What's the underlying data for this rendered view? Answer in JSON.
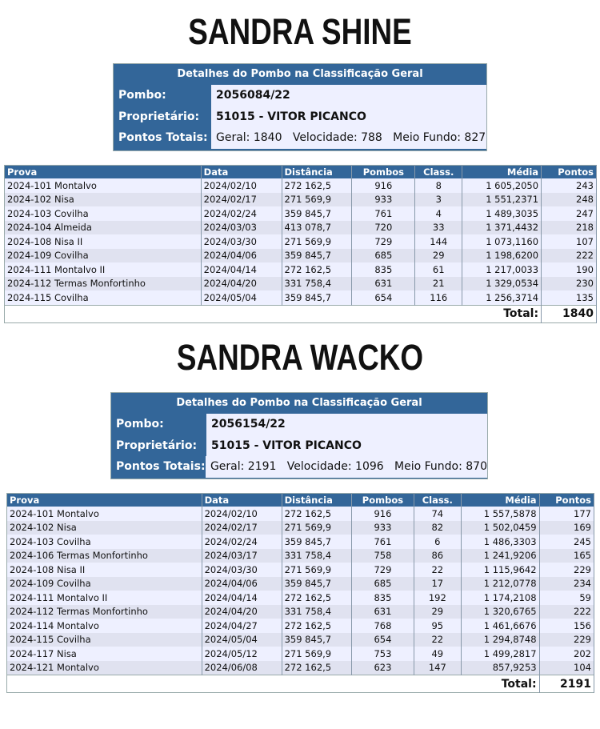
{
  "headers": {
    "prova": "Prova",
    "data": "Data",
    "distancia": "Distância",
    "pombos": "Pombos",
    "classif": "Class.",
    "media": "Média",
    "pontos": "Pontos"
  },
  "labels": {
    "box_title": "Detalhes do Pombo na Classificação Geral",
    "pombo": "Pombo:",
    "proprietario": "Proprietário:",
    "pontos_totais": "Pontos Totais:",
    "total": "Total:"
  },
  "colors": {
    "header_blue": "#336699",
    "row_light": "#eef0ff",
    "row_dark": "#e0e2f0"
  },
  "sections": [
    {
      "name": "SANDRA SHINE",
      "pombo": "2056084/22",
      "proprietario": "51015 - VITOR PICANCO",
      "pontos_totais": "Geral: 1840   Velocidade: 788   Meio Fundo: 827",
      "total": "1840",
      "rows": [
        [
          "2024-101 Montalvo",
          "2024/02/10",
          "272 162,5",
          "916",
          "8",
          "1 605,2050",
          "243"
        ],
        [
          "2024-102 Nisa",
          "2024/02/17",
          "271 569,9",
          "933",
          "3",
          "1 551,2371",
          "248"
        ],
        [
          "2024-103 Covilha",
          "2024/02/24",
          "359 845,7",
          "761",
          "4",
          "1 489,3035",
          "247"
        ],
        [
          "2024-104 Almeida",
          "2024/03/03",
          "413 078,7",
          "720",
          "33",
          "1 371,4432",
          "218"
        ],
        [
          "2024-108 Nisa II",
          "2024/03/30",
          "271 569,9",
          "729",
          "144",
          "1 073,1160",
          "107"
        ],
        [
          "2024-109 Covilha",
          "2024/04/06",
          "359 845,7",
          "685",
          "29",
          "1 198,6200",
          "222"
        ],
        [
          "2024-111 Montalvo II",
          "2024/04/14",
          "272 162,5",
          "835",
          "61",
          "1 217,0033",
          "190"
        ],
        [
          "2024-112 Termas Monfortinho",
          "2024/04/20",
          "331 758,4",
          "631",
          "21",
          "1 329,0534",
          "230"
        ],
        [
          "2024-115 Covilha",
          "2024/05/04",
          "359 845,7",
          "654",
          "116",
          "1 256,3714",
          "135"
        ]
      ]
    },
    {
      "name": "SANDRA WACKO",
      "pombo": "2056154/22",
      "proprietario": "51015 - VITOR PICANCO",
      "pontos_totais": "Geral: 2191   Velocidade: 1096   Meio Fundo: 870",
      "total": "2191",
      "rows": [
        [
          "2024-101 Montalvo",
          "2024/02/10",
          "272 162,5",
          "916",
          "74",
          "1 557,5878",
          "177"
        ],
        [
          "2024-102 Nisa",
          "2024/02/17",
          "271 569,9",
          "933",
          "82",
          "1 502,0459",
          "169"
        ],
        [
          "2024-103 Covilha",
          "2024/02/24",
          "359 845,7",
          "761",
          "6",
          "1 486,3303",
          "245"
        ],
        [
          "2024-106 Termas Monfortinho",
          "2024/03/17",
          "331 758,4",
          "758",
          "86",
          "1 241,9206",
          "165"
        ],
        [
          "2024-108 Nisa II",
          "2024/03/30",
          "271 569,9",
          "729",
          "22",
          "1 115,9642",
          "229"
        ],
        [
          "2024-109 Covilha",
          "2024/04/06",
          "359 845,7",
          "685",
          "17",
          "1 212,0778",
          "234"
        ],
        [
          "2024-111 Montalvo II",
          "2024/04/14",
          "272 162,5",
          "835",
          "192",
          "1 174,2108",
          "59"
        ],
        [
          "2024-112 Termas Monfortinho",
          "2024/04/20",
          "331 758,4",
          "631",
          "29",
          "1 320,6765",
          "222"
        ],
        [
          "2024-114 Montalvo",
          "2024/04/27",
          "272 162,5",
          "768",
          "95",
          "1 461,6676",
          "156"
        ],
        [
          "2024-115 Covilha",
          "2024/05/04",
          "359 845,7",
          "654",
          "22",
          "1 294,8748",
          "229"
        ],
        [
          "2024-117 Nisa",
          "2024/05/12",
          "271 569,9",
          "753",
          "49",
          "1 499,2817",
          "202"
        ],
        [
          "2024-121 Montalvo",
          "2024/06/08",
          "272 162,5",
          "623",
          "147",
          "857,9253",
          "104"
        ]
      ]
    }
  ]
}
